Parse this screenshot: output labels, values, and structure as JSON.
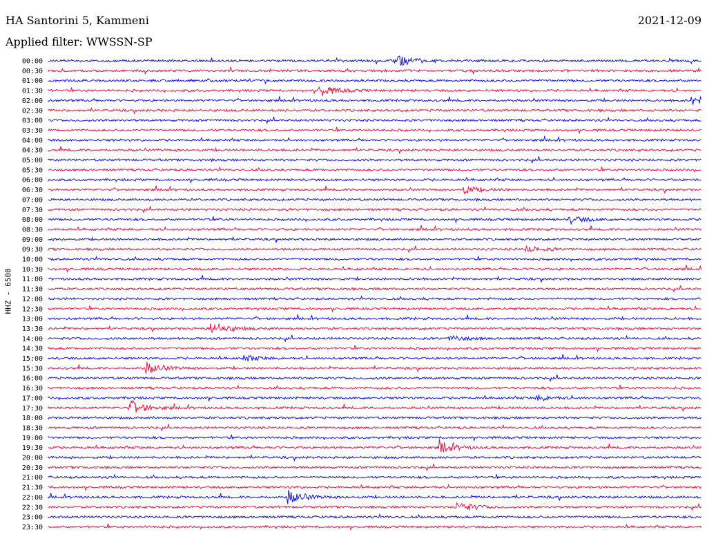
{
  "header": {
    "station": "HA Santorini 5, Kammeni",
    "date": "2021-12-09",
    "filter": "Applied filter: WWSSN-SP"
  },
  "colors": {
    "odd_trace": "#1010ee",
    "even_trace": "#ee1040"
  },
  "chart_data": {
    "type": "line",
    "kind": "seismogram-helicorder",
    "ylabel": "HHZ - 6500",
    "rows": [
      "00:00",
      "00:30",
      "01:00",
      "01:30",
      "02:00",
      "02:30",
      "03:00",
      "03:30",
      "04:00",
      "04:30",
      "05:00",
      "05:30",
      "06:00",
      "06:30",
      "07:00",
      "07:30",
      "08:00",
      "08:30",
      "09:00",
      "09:30",
      "10:00",
      "10:30",
      "11:00",
      "11:30",
      "12:00",
      "12:30",
      "13:00",
      "13:30",
      "14:00",
      "14:30",
      "15:00",
      "15:30",
      "16:00",
      "16:30",
      "17:00",
      "17:30",
      "18:00",
      "18:30",
      "19:00",
      "19:30",
      "20:00",
      "20:30",
      "21:00",
      "21:30",
      "22:00",
      "22:30",
      "23:00",
      "23:30"
    ],
    "row_duration_minutes": 30,
    "events": [
      {
        "row": "00:00",
        "minute": 16.0,
        "amplitude": 1.0
      },
      {
        "row": "01:30",
        "minute": 12.5,
        "amplitude": 0.8
      },
      {
        "row": "02:00",
        "minute": 29.6,
        "amplitude": 0.7
      },
      {
        "row": "06:30",
        "minute": 19.0,
        "amplitude": 0.6
      },
      {
        "row": "08:00",
        "minute": 24.0,
        "amplitude": 0.5
      },
      {
        "row": "09:30",
        "minute": 22.0,
        "amplitude": 0.4
      },
      {
        "row": "13:30",
        "minute": 7.5,
        "amplitude": 1.0
      },
      {
        "row": "14:00",
        "minute": 18.5,
        "amplitude": 0.4
      },
      {
        "row": "15:00",
        "minute": 9.0,
        "amplitude": 0.4
      },
      {
        "row": "15:30",
        "minute": 4.5,
        "amplitude": 0.8
      },
      {
        "row": "17:00",
        "minute": 22.5,
        "amplitude": 0.4
      },
      {
        "row": "17:30",
        "minute": 3.8,
        "amplitude": 1.0
      },
      {
        "row": "19:30",
        "minute": 18.0,
        "amplitude": 0.8
      },
      {
        "row": "22:00",
        "minute": 11.0,
        "amplitude": 1.0
      },
      {
        "row": "22:30",
        "minute": 18.8,
        "amplitude": 0.8
      }
    ]
  }
}
